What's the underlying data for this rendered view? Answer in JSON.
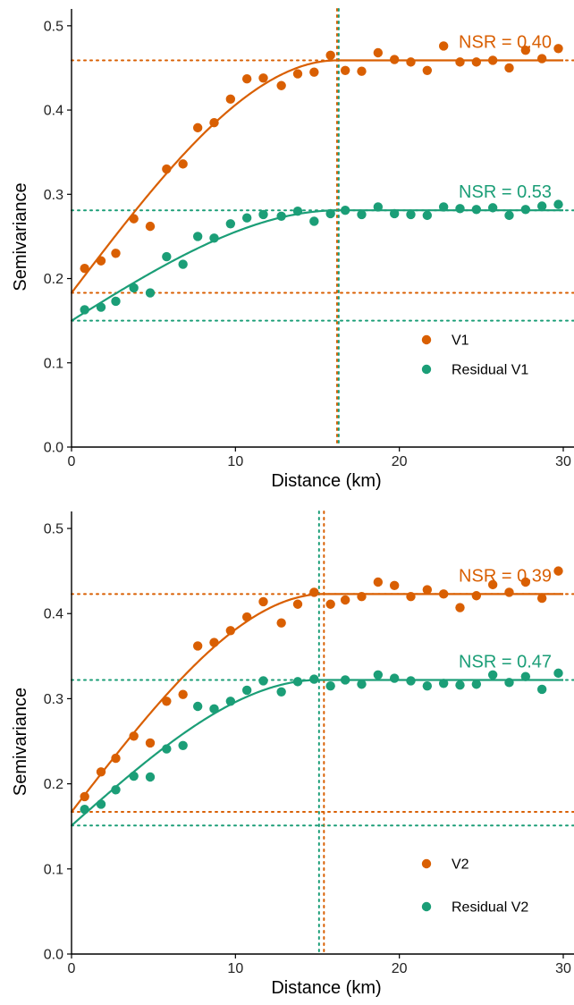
{
  "chart_data": [
    {
      "type": "scatter",
      "xlabel": "Distance (km)",
      "ylabel": "Semivariance",
      "xlim": [
        0,
        30
      ],
      "ylim": [
        0,
        0.52
      ],
      "x_ticks": [
        0,
        10,
        20,
        30
      ],
      "x_tick_labels": [
        "0",
        "10",
        "20",
        "30"
      ],
      "y_ticks": [
        0.0,
        0.1,
        0.2,
        0.3,
        0.4,
        0.5
      ],
      "y_tick_labels": [
        "0.0",
        "0.1",
        "0.2",
        "0.3",
        "0.4",
        "0.5"
      ],
      "legend_position": "bottom-right",
      "grid": false,
      "series": [
        {
          "name": "V1",
          "color": "#d95f02",
          "x": [
            0.8,
            1.8,
            2.7,
            3.8,
            4.8,
            5.8,
            6.8,
            7.7,
            8.7,
            9.7,
            10.7,
            11.7,
            12.8,
            13.8,
            14.8,
            15.8,
            16.7,
            17.7,
            18.7,
            19.7,
            20.7,
            21.7,
            22.7,
            23.7,
            24.7,
            25.7,
            26.7,
            27.7,
            28.7,
            29.7
          ],
          "y": [
            0.212,
            0.221,
            0.23,
            0.271,
            0.262,
            0.33,
            0.336,
            0.379,
            0.385,
            0.413,
            0.437,
            0.438,
            0.429,
            0.443,
            0.445,
            0.465,
            0.447,
            0.446,
            0.468,
            0.46,
            0.457,
            0.447,
            0.476,
            0.457,
            0.457,
            0.459,
            0.45,
            0.471,
            0.461,
            0.473
          ],
          "fit": {
            "nugget": 0.183,
            "sill": 0.459,
            "range": 16.2
          },
          "nsr_label": "NSR = 0.40"
        },
        {
          "name": "Residual V1",
          "color": "#1b9e77",
          "x": [
            0.8,
            1.8,
            2.7,
            3.8,
            4.8,
            5.8,
            6.8,
            7.7,
            8.7,
            9.7,
            10.7,
            11.7,
            12.8,
            13.8,
            14.8,
            15.8,
            16.7,
            17.7,
            18.7,
            19.7,
            20.7,
            21.7,
            22.7,
            23.7,
            24.7,
            25.7,
            26.7,
            27.7,
            28.7,
            29.7
          ],
          "y": [
            0.163,
            0.166,
            0.173,
            0.189,
            0.183,
            0.226,
            0.217,
            0.25,
            0.248,
            0.265,
            0.272,
            0.276,
            0.274,
            0.28,
            0.268,
            0.277,
            0.281,
            0.276,
            0.285,
            0.277,
            0.276,
            0.275,
            0.285,
            0.283,
            0.282,
            0.284,
            0.275,
            0.282,
            0.286,
            0.288
          ],
          "fit": {
            "nugget": 0.15,
            "sill": 0.281,
            "range": 16.3
          },
          "nsr_label": "NSR = 0.53"
        }
      ]
    },
    {
      "type": "scatter",
      "xlabel": "Distance (km)",
      "ylabel": "Semivariance",
      "xlim": [
        0,
        30
      ],
      "ylim": [
        0,
        0.52
      ],
      "x_ticks": [
        0,
        10,
        20,
        30
      ],
      "x_tick_labels": [
        "0",
        "10",
        "20",
        "30"
      ],
      "y_ticks": [
        0.0,
        0.1,
        0.2,
        0.3,
        0.4,
        0.5
      ],
      "y_tick_labels": [
        "0.0",
        "0.1",
        "0.2",
        "0.3",
        "0.4",
        "0.5"
      ],
      "legend_position": "bottom-right",
      "grid": false,
      "series": [
        {
          "name": "V2",
          "color": "#d95f02",
          "x": [
            0.8,
            1.8,
            2.7,
            3.8,
            4.8,
            5.8,
            6.8,
            7.7,
            8.7,
            9.7,
            10.7,
            11.7,
            12.8,
            13.8,
            14.8,
            15.8,
            16.7,
            17.7,
            18.7,
            19.7,
            20.7,
            21.7,
            22.7,
            23.7,
            24.7,
            25.7,
            26.7,
            27.7,
            28.7,
            29.7
          ],
          "y": [
            0.185,
            0.214,
            0.23,
            0.256,
            0.248,
            0.297,
            0.305,
            0.362,
            0.366,
            0.38,
            0.396,
            0.414,
            0.389,
            0.411,
            0.425,
            0.411,
            0.416,
            0.42,
            0.437,
            0.433,
            0.42,
            0.428,
            0.423,
            0.407,
            0.421,
            0.434,
            0.425,
            0.437,
            0.418,
            0.45
          ],
          "fit": {
            "nugget": 0.167,
            "sill": 0.423,
            "range": 15.4
          },
          "nsr_label": "NSR = 0.39"
        },
        {
          "name": "Residual V2",
          "color": "#1b9e77",
          "x": [
            0.8,
            1.8,
            2.7,
            3.8,
            4.8,
            5.8,
            6.8,
            7.7,
            8.7,
            9.7,
            10.7,
            11.7,
            12.8,
            13.8,
            14.8,
            15.8,
            16.7,
            17.7,
            18.7,
            19.7,
            20.7,
            21.7,
            22.7,
            23.7,
            24.7,
            25.7,
            26.7,
            27.7,
            28.7,
            29.7
          ],
          "y": [
            0.17,
            0.176,
            0.193,
            0.209,
            0.208,
            0.241,
            0.245,
            0.291,
            0.288,
            0.297,
            0.31,
            0.321,
            0.308,
            0.32,
            0.323,
            0.315,
            0.322,
            0.317,
            0.328,
            0.324,
            0.321,
            0.315,
            0.318,
            0.316,
            0.317,
            0.328,
            0.319,
            0.326,
            0.311,
            0.33
          ],
          "fit": {
            "nugget": 0.151,
            "sill": 0.322,
            "range": 15.1
          },
          "nsr_label": "NSR = 0.47"
        }
      ]
    }
  ]
}
